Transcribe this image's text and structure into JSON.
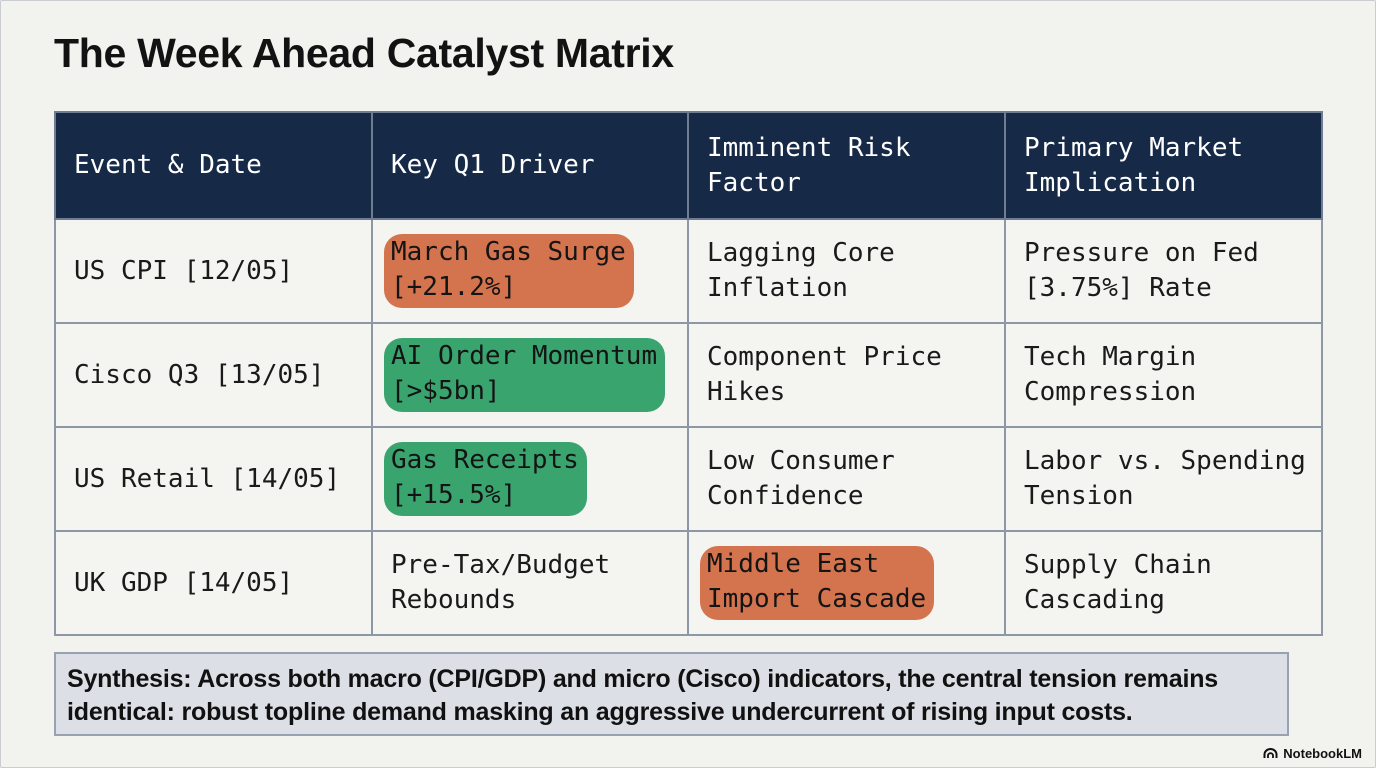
{
  "title": "The Week Ahead Catalyst Matrix",
  "table": {
    "headers": [
      [
        "Event & Date"
      ],
      [
        "Key Q1 Driver"
      ],
      [
        "Imminent Risk",
        "Factor"
      ],
      [
        "Primary Market",
        "Implication"
      ]
    ],
    "rows": [
      {
        "event": "US CPI [12/05]",
        "driver": [
          "March Gas Surge",
          "[+21.2%]"
        ],
        "driver_highlight": "red",
        "risk": [
          "Lagging Core",
          "Inflation"
        ],
        "risk_highlight": "none",
        "implication": [
          "Pressure on Fed",
          "[3.75%] Rate"
        ]
      },
      {
        "event": "Cisco Q3 [13/05]",
        "driver": [
          "AI Order Momentum",
          "[>$5bn]"
        ],
        "driver_highlight": "green",
        "risk": [
          "Component Price",
          "Hikes"
        ],
        "risk_highlight": "none",
        "implication": [
          "Tech Margin",
          "Compression"
        ]
      },
      {
        "event": "US Retail [14/05]",
        "driver": [
          "Gas Receipts",
          "[+15.5%]"
        ],
        "driver_highlight": "green",
        "risk": [
          "Low Consumer",
          "Confidence"
        ],
        "risk_highlight": "none",
        "implication": [
          "Labor vs. Spending",
          "Tension"
        ]
      },
      {
        "event": "UK GDP [14/05]",
        "driver": [
          "Pre-Tax/Budget",
          "Rebounds"
        ],
        "driver_highlight": "none",
        "risk": [
          "Middle East",
          "Import Cascade"
        ],
        "risk_highlight": "red",
        "implication": [
          "Supply Chain",
          "Cascading"
        ]
      }
    ]
  },
  "synthesis": [
    "Synthesis: Across both macro (CPI/GDP) and micro (Cisco) indicators, the central tension remains",
    "identical: robust topline demand masking an aggressive undercurrent of rising input costs."
  ],
  "brand": {
    "label": "NotebookLM",
    "icon": "notebooklm-logo-icon"
  },
  "colors": {
    "header_bg": "#162a48",
    "highlight_red": "#d4744f",
    "highlight_green": "#3aa46f",
    "synthesis_bg": "#dcdfe5"
  }
}
